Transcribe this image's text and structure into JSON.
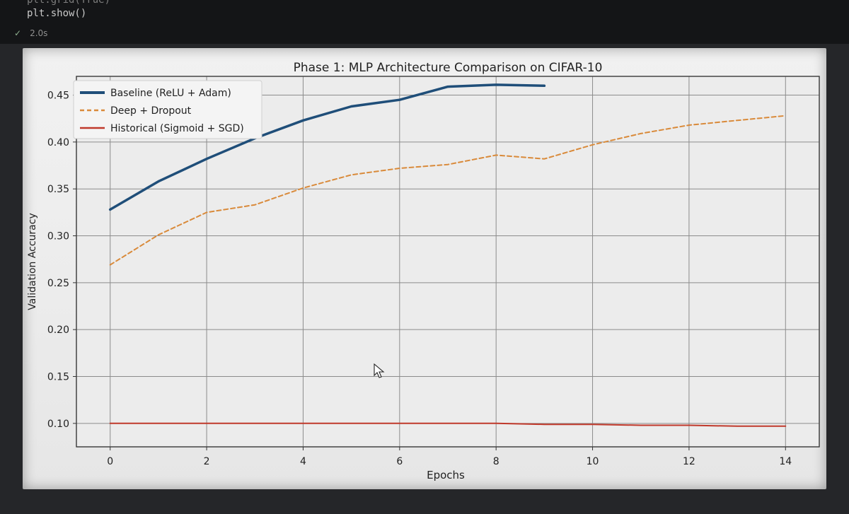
{
  "code": {
    "partial_line": "plt.grid(True)",
    "line": "plt.show()",
    "run_time": "2.0s",
    "check_icon": "checkmark-icon"
  },
  "chart_data": {
    "type": "line",
    "title": "Phase 1: MLP Architecture Comparison on CIFAR-10",
    "xlabel": "Epochs",
    "ylabel": "Validation Accuracy",
    "xlim": [
      -0.7,
      14.7
    ],
    "ylim": [
      0.075,
      0.47
    ],
    "xticks": [
      0,
      2,
      4,
      6,
      8,
      10,
      12,
      14
    ],
    "xtick_labels": [
      "0",
      "2",
      "4",
      "6",
      "8",
      "10",
      "12",
      "14"
    ],
    "yticks": [
      0.1,
      0.15,
      0.2,
      0.25,
      0.3,
      0.35,
      0.4,
      0.45
    ],
    "ytick_labels": [
      "0.10",
      "0.15",
      "0.20",
      "0.25",
      "0.30",
      "0.35",
      "0.40",
      "0.45"
    ],
    "grid": true,
    "legend_position": "top-left",
    "series": [
      {
        "name": "Baseline (ReLU + Adam)",
        "color": "#1f4e79",
        "style": "solid",
        "x": [
          0,
          1,
          2,
          3,
          4,
          5,
          6,
          7,
          8,
          9
        ],
        "y": [
          0.328,
          0.358,
          0.382,
          0.404,
          0.423,
          0.438,
          0.445,
          0.459,
          0.461,
          0.46
        ]
      },
      {
        "name": "Deep + Dropout",
        "color": "#d98a3a",
        "style": "dashed",
        "x": [
          0,
          1,
          2,
          3,
          4,
          5,
          6,
          7,
          8,
          9,
          10,
          11,
          12,
          13,
          14
        ],
        "y": [
          0.269,
          0.301,
          0.325,
          0.333,
          0.351,
          0.365,
          0.372,
          0.376,
          0.386,
          0.382,
          0.397,
          0.409,
          0.418,
          0.423,
          0.428
        ]
      },
      {
        "name": "Historical (Sigmoid + SGD)",
        "color": "#c0392b",
        "style": "solid",
        "x": [
          0,
          1,
          2,
          3,
          4,
          5,
          6,
          7,
          8,
          9,
          10,
          11,
          12,
          13,
          14
        ],
        "y": [
          0.1,
          0.1,
          0.1,
          0.1,
          0.1,
          0.1,
          0.1,
          0.1,
          0.1,
          0.099,
          0.099,
          0.098,
          0.098,
          0.097,
          0.097
        ]
      }
    ]
  }
}
